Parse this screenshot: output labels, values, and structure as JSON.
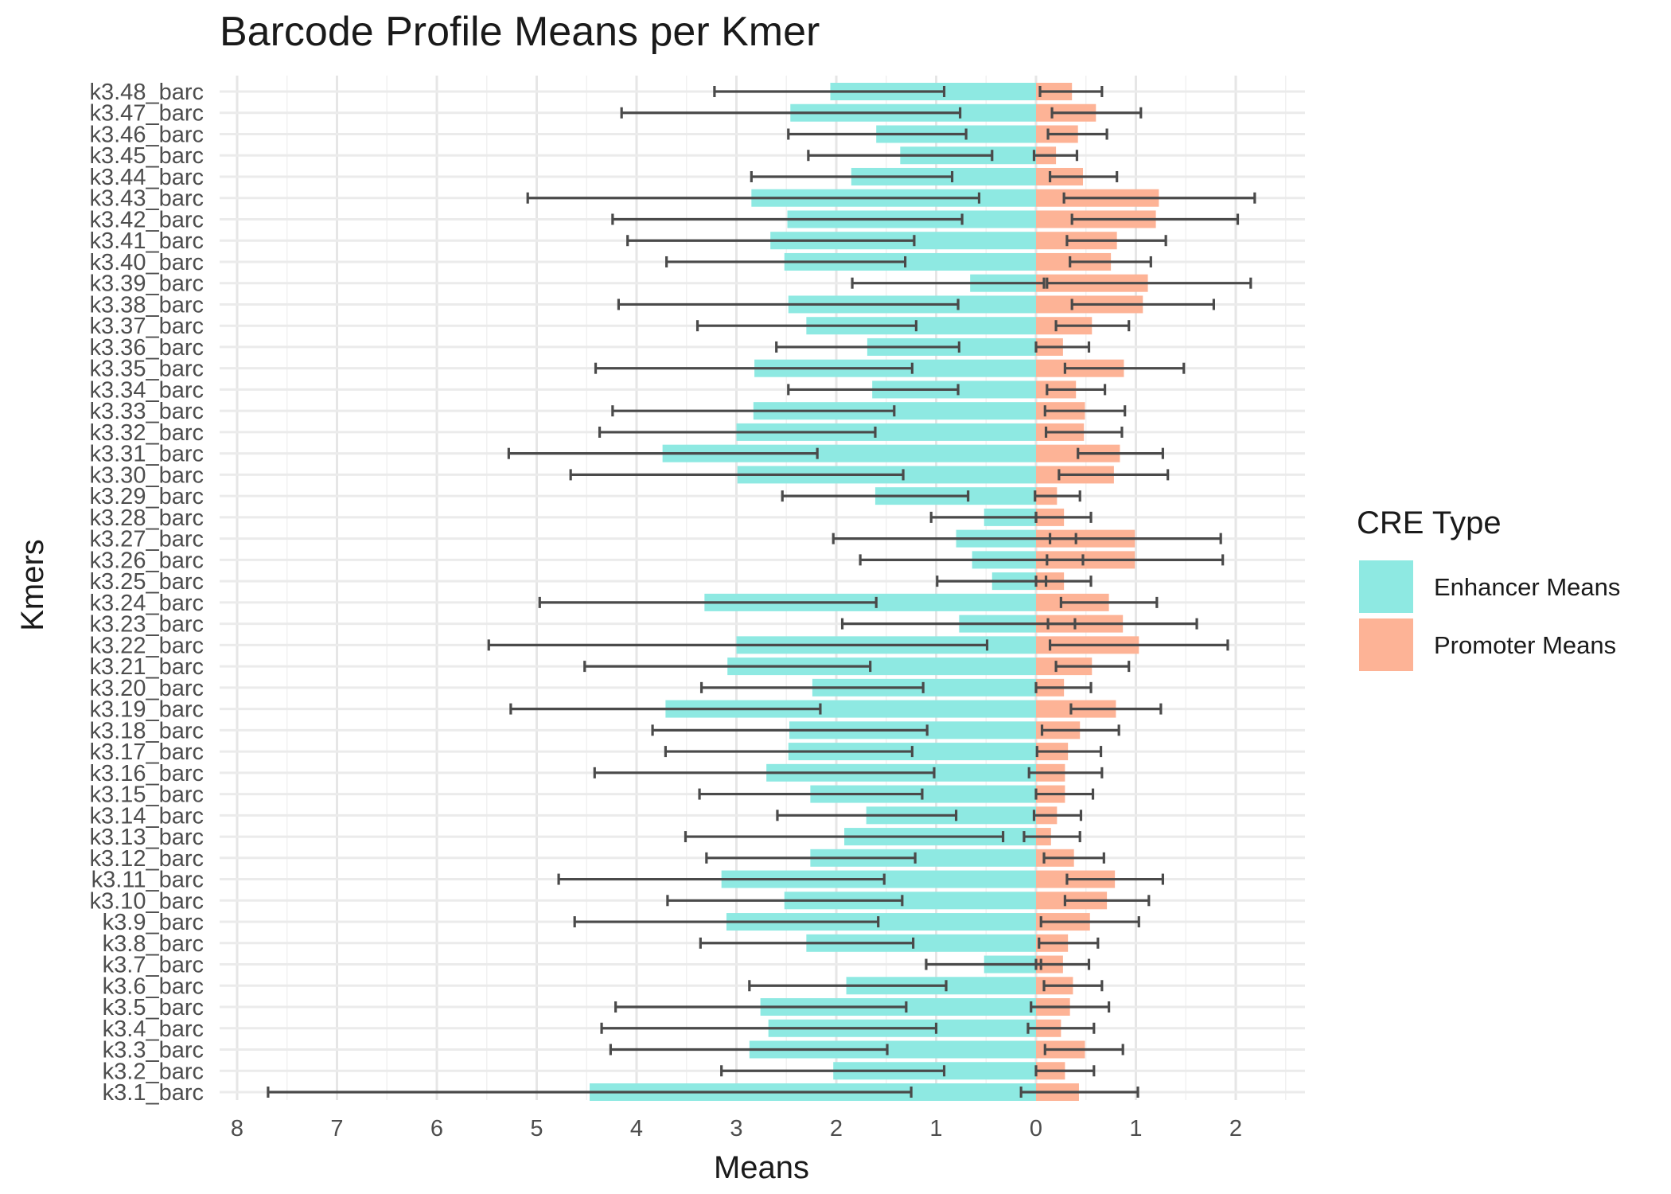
{
  "chart_data": {
    "type": "bar",
    "orientation": "horizontal",
    "title": "Barcode Profile Means per Kmer",
    "xlabel": "Means",
    "ylabel": "Kmers",
    "x_tick_labels": [
      "8",
      "7",
      "6",
      "5",
      "4",
      "3",
      "2",
      "1",
      "0",
      "1",
      "2"
    ],
    "x_tick_values": [
      -8,
      -7,
      -6,
      -5,
      -4,
      -3,
      -2,
      -1,
      0,
      1,
      2
    ],
    "xlim": [
      -8.1,
      2.7
    ],
    "grid": true,
    "legend": {
      "title": "CRE Type",
      "placement": "right",
      "entries": [
        {
          "label": "Enhancer Means",
          "color": "#8ee9e2"
        },
        {
          "label": "Promoter Means",
          "color": "#fdb396"
        }
      ]
    },
    "categories": [
      "k3.1_barc",
      "k3.2_barc",
      "k3.3_barc",
      "k3.4_barc",
      "k3.5_barc",
      "k3.6_barc",
      "k3.7_barc",
      "k3.8_barc",
      "k3.9_barc",
      "k3.10_barc",
      "k3.11_barc",
      "k3.12_barc",
      "k3.13_barc",
      "k3.14_barc",
      "k3.15_barc",
      "k3.16_barc",
      "k3.17_barc",
      "k3.18_barc",
      "k3.19_barc",
      "k3.20_barc",
      "k3.21_barc",
      "k3.22_barc",
      "k3.23_barc",
      "k3.24_barc",
      "k3.25_barc",
      "k3.26_barc",
      "k3.27_barc",
      "k3.28_barc",
      "k3.29_barc",
      "k3.30_barc",
      "k3.31_barc",
      "k3.32_barc",
      "k3.33_barc",
      "k3.34_barc",
      "k3.35_barc",
      "k3.36_barc",
      "k3.37_barc",
      "k3.38_barc",
      "k3.39_barc",
      "k3.40_barc",
      "k3.41_barc",
      "k3.42_barc",
      "k3.43_barc",
      "k3.44_barc",
      "k3.45_barc",
      "k3.46_barc",
      "k3.47_barc",
      "k3.48_barc"
    ],
    "series": [
      {
        "name": "Enhancer Means",
        "color": "#8ee9e2",
        "values": [
          -4.47,
          -2.03,
          -2.87,
          -2.68,
          -2.76,
          -1.9,
          -0.52,
          -2.3,
          -3.1,
          -2.52,
          -3.15,
          -2.26,
          -1.92,
          -1.7,
          -2.26,
          -2.7,
          -2.48,
          -2.47,
          -3.71,
          -2.24,
          -3.09,
          -3.0,
          -0.77,
          -3.32,
          -0.44,
          -0.64,
          -0.8,
          -0.52,
          -1.61,
          -2.99,
          -3.74,
          -3.0,
          -2.83,
          -1.64,
          -2.82,
          -1.69,
          -2.3,
          -2.48,
          -0.66,
          -2.52,
          -2.66,
          -2.49,
          -2.85,
          -1.85,
          -1.36,
          -1.6,
          -2.46,
          -2.06
        ],
        "err_low": [
          -7.69,
          -3.15,
          -4.26,
          -4.35,
          -4.21,
          -2.87,
          -1.1,
          -3.36,
          -4.62,
          -3.69,
          -4.78,
          -3.3,
          -3.51,
          -2.59,
          -3.37,
          -4.42,
          -3.71,
          -3.84,
          -5.26,
          -3.35,
          -4.52,
          -5.48,
          -1.94,
          -4.97,
          -0.99,
          -1.76,
          -2.03,
          -1.05,
          -2.54,
          -4.66,
          -5.28,
          -4.37,
          -4.24,
          -2.48,
          -4.41,
          -2.6,
          -3.39,
          -4.18,
          -1.84,
          -3.7,
          -4.09,
          -4.24,
          -5.09,
          -2.85,
          -2.28,
          -2.48,
          -4.15,
          -3.22
        ],
        "err_high": [
          -1.25,
          -0.92,
          -1.49,
          -1.0,
          -1.3,
          -0.9,
          0.05,
          -1.23,
          -1.58,
          -1.34,
          -1.52,
          -1.21,
          -0.33,
          -0.8,
          -1.14,
          -1.02,
          -1.24,
          -1.09,
          -2.16,
          -1.13,
          -1.66,
          -0.49,
          0.39,
          -1.6,
          0.1,
          0.47,
          0.4,
          0.0,
          -0.68,
          -1.33,
          -2.19,
          -1.61,
          -1.42,
          -0.78,
          -1.24,
          -0.77,
          -1.2,
          -0.78,
          0.08,
          -1.31,
          -1.22,
          -0.74,
          -0.57,
          -0.84,
          -0.44,
          -0.7,
          -0.76,
          -0.92
        ]
      },
      {
        "name": "Promoter Means",
        "color": "#fdb396",
        "values": [
          0.43,
          0.29,
          0.49,
          0.25,
          0.34,
          0.37,
          0.27,
          0.32,
          0.54,
          0.71,
          0.79,
          0.38,
          0.15,
          0.21,
          0.29,
          0.29,
          0.32,
          0.44,
          0.8,
          0.28,
          0.56,
          1.03,
          0.87,
          0.73,
          0.28,
          0.99,
          0.99,
          0.28,
          0.21,
          0.78,
          0.84,
          0.48,
          0.49,
          0.4,
          0.88,
          0.27,
          0.56,
          1.07,
          1.12,
          0.75,
          0.81,
          1.2,
          1.23,
          0.47,
          0.2,
          0.42,
          0.6,
          0.36
        ],
        "err_low": [
          -0.15,
          0.0,
          0.09,
          -0.08,
          -0.05,
          0.08,
          0.0,
          0.03,
          0.05,
          0.29,
          0.31,
          0.08,
          -0.12,
          -0.02,
          0.0,
          -0.07,
          0.01,
          0.06,
          0.35,
          0.0,
          0.2,
          0.14,
          0.12,
          0.25,
          0.0,
          0.11,
          0.14,
          0.0,
          -0.01,
          0.23,
          0.42,
          0.1,
          0.09,
          0.11,
          0.29,
          0.0,
          0.2,
          0.36,
          0.11,
          0.34,
          0.31,
          0.36,
          0.28,
          0.14,
          -0.02,
          0.12,
          0.16,
          0.04
        ],
        "err_high": [
          1.02,
          0.58,
          0.87,
          0.58,
          0.73,
          0.66,
          0.53,
          0.62,
          1.03,
          1.13,
          1.27,
          0.68,
          0.44,
          0.45,
          0.57,
          0.66,
          0.65,
          0.83,
          1.25,
          0.55,
          0.93,
          1.92,
          1.61,
          1.21,
          0.55,
          1.87,
          1.85,
          0.55,
          0.44,
          1.32,
          1.27,
          0.86,
          0.89,
          0.69,
          1.48,
          0.53,
          0.93,
          1.78,
          2.15,
          1.15,
          1.3,
          2.02,
          2.19,
          0.81,
          0.41,
          0.71,
          1.05,
          0.66
        ]
      }
    ]
  }
}
